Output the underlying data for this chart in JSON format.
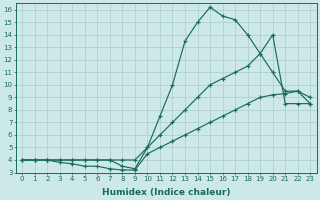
{
  "xlabel": "Humidex (Indice chaleur)",
  "bg_color": "#cce8e8",
  "grid_color": "#b0d0d0",
  "line_color": "#1a6b5a",
  "xlim": [
    -0.5,
    23.5
  ],
  "ylim": [
    3,
    16.5
  ],
  "xticks": [
    0,
    1,
    2,
    3,
    4,
    5,
    6,
    7,
    8,
    9,
    10,
    11,
    12,
    13,
    14,
    15,
    16,
    17,
    18,
    19,
    20,
    21,
    22,
    23
  ],
  "yticks": [
    3,
    4,
    5,
    6,
    7,
    8,
    9,
    10,
    11,
    12,
    13,
    14,
    15,
    16
  ],
  "series": [
    {
      "x": [
        0,
        1,
        2,
        3,
        4,
        5,
        6,
        7,
        8,
        9,
        10,
        11,
        12,
        13,
        14,
        15,
        16,
        17,
        18,
        19,
        20,
        21,
        22,
        23
      ],
      "y": [
        4,
        4,
        4,
        4,
        4,
        4,
        4,
        4,
        3.5,
        3.3,
        5,
        7.5,
        10,
        13.5,
        15,
        16.2,
        15.5,
        15.2,
        14.0,
        12.5,
        11,
        9.5,
        9.5,
        9.0
      ]
    },
    {
      "x": [
        0,
        1,
        2,
        3,
        4,
        5,
        6,
        7,
        8,
        9,
        10,
        11,
        12,
        13,
        14,
        15,
        16,
        17,
        18,
        19,
        20,
        21,
        22,
        23
      ],
      "y": [
        4,
        4,
        4,
        4,
        4,
        4,
        4,
        4,
        4,
        4,
        5,
        6,
        7,
        8,
        9,
        10,
        10.5,
        11,
        11.5,
        12.5,
        14,
        8.5,
        8.5,
        8.5
      ]
    },
    {
      "x": [
        0,
        1,
        2,
        3,
        4,
        5,
        6,
        7,
        8,
        9,
        10,
        11,
        12,
        13,
        14,
        15,
        16,
        17,
        18,
        19,
        20,
        21,
        22,
        23
      ],
      "y": [
        4,
        4,
        4,
        3.8,
        3.7,
        3.5,
        3.5,
        3.3,
        3.2,
        3.2,
        4.5,
        5.0,
        5.5,
        6.0,
        6.5,
        7.0,
        7.5,
        8.0,
        8.5,
        9.0,
        9.2,
        9.3,
        9.5,
        8.5
      ]
    }
  ]
}
